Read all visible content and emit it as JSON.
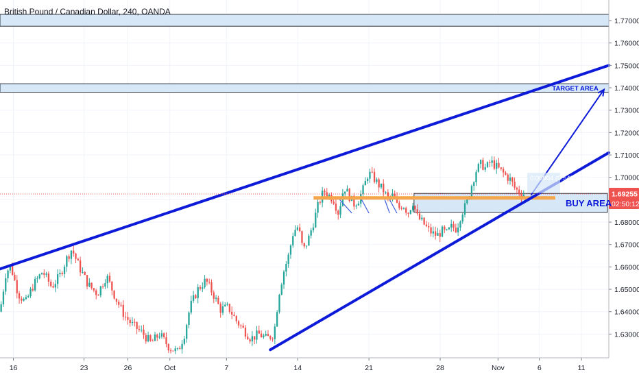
{
  "header": {
    "symbol_title": "British Pound / Canadian Dollar, 240, OANDA"
  },
  "colors": {
    "up": "#26a69a",
    "down": "#ef5350",
    "trendline": "#0d1bd8",
    "zone_fill": "#d6e8f8",
    "zone_border": "#2a2e39",
    "orange_line": "#f6a54a",
    "price_red": "#ef5350",
    "measure_box": "#d6e8f8"
  },
  "annotations": {
    "target_label": "TARGET AREA",
    "buy_label": "BUY AREA",
    "measure_label": "0.00904 (0.54%) 90.4"
  },
  "price_axis": {
    "current_price": "1.69255",
    "countdown": "02:50:12"
  },
  "chart_data": {
    "type": "candlestick",
    "title": "British Pound / Canadian Dollar, 240, OANDA",
    "y_range": [
      1.6194,
      1.7792
    ],
    "y_ticks": [
      "1.77000",
      "1.76000",
      "1.75000",
      "1.74000",
      "1.73000",
      "1.72000",
      "1.71000",
      "1.70000",
      "1.69000",
      "1.68000",
      "1.67000",
      "1.66000",
      "1.65000",
      "1.64000",
      "1.63000"
    ],
    "x_ticks": [
      "16",
      "23",
      "26",
      "Oct",
      "7",
      "14",
      "21",
      "28",
      "Nov",
      "6",
      "11"
    ],
    "current_price": 1.69255,
    "zones": [
      {
        "name": "top-zone",
        "from": 1.7675,
        "to": 1.7728
      },
      {
        "name": "target-zone",
        "from": 1.738,
        "to": 1.7418
      },
      {
        "name": "buy-zone",
        "from": 1.6844,
        "to": 1.6928
      }
    ],
    "orange_level": 1.6908,
    "trendlines": [
      {
        "name": "upper-channel",
        "from": [
          0,
          1.6591
        ],
        "to": [
          1,
          1.75
        ]
      },
      {
        "name": "lower-channel",
        "from": [
          0.444,
          1.623
        ],
        "to": [
          1,
          1.711
        ]
      }
    ],
    "price_path": [
      [
        0.0,
        1.64
      ],
      [
        0.01,
        1.658
      ],
      [
        0.018,
        1.66
      ],
      [
        0.03,
        1.648
      ],
      [
        0.042,
        1.644
      ],
      [
        0.055,
        1.652
      ],
      [
        0.07,
        1.658
      ],
      [
        0.085,
        1.651
      ],
      [
        0.098,
        1.656
      ],
      [
        0.11,
        1.664
      ],
      [
        0.118,
        1.668
      ],
      [
        0.13,
        1.66
      ],
      [
        0.145,
        1.652
      ],
      [
        0.16,
        1.648
      ],
      [
        0.175,
        1.656
      ],
      [
        0.19,
        1.646
      ],
      [
        0.205,
        1.638
      ],
      [
        0.218,
        1.634
      ],
      [
        0.232,
        1.631
      ],
      [
        0.248,
        1.626
      ],
      [
        0.262,
        1.63
      ],
      [
        0.278,
        1.624
      ],
      [
        0.292,
        1.622
      ],
      [
        0.303,
        1.63
      ],
      [
        0.312,
        1.642
      ],
      [
        0.325,
        1.65
      ],
      [
        0.338,
        1.654
      ],
      [
        0.35,
        1.648
      ],
      [
        0.362,
        1.641
      ],
      [
        0.375,
        1.642
      ],
      [
        0.388,
        1.636
      ],
      [
        0.4,
        1.632
      ],
      [
        0.412,
        1.628
      ],
      [
        0.425,
        1.63
      ],
      [
        0.438,
        1.628
      ],
      [
        0.45,
        1.63
      ],
      [
        0.458,
        1.648
      ],
      [
        0.466,
        1.658
      ],
      [
        0.474,
        1.665
      ],
      [
        0.482,
        1.676
      ],
      [
        0.49,
        1.678
      ],
      [
        0.498,
        1.667
      ],
      [
        0.506,
        1.672
      ],
      [
        0.515,
        1.68
      ],
      [
        0.523,
        1.688
      ],
      [
        0.532,
        1.694
      ],
      [
        0.54,
        1.692
      ],
      [
        0.548,
        1.69
      ],
      [
        0.556,
        1.684
      ],
      [
        0.565,
        1.696
      ],
      [
        0.573,
        1.692
      ],
      [
        0.581,
        1.688
      ],
      [
        0.589,
        1.69
      ],
      [
        0.597,
        1.695
      ],
      [
        0.605,
        1.702
      ],
      [
        0.613,
        1.7
      ],
      [
        0.621,
        1.697
      ],
      [
        0.63,
        1.694
      ],
      [
        0.638,
        1.69
      ],
      [
        0.646,
        1.692
      ],
      [
        0.654,
        1.686
      ],
      [
        0.662,
        1.688
      ],
      [
        0.67,
        1.684
      ],
      [
        0.678,
        1.689
      ],
      [
        0.686,
        1.682
      ],
      [
        0.694,
        1.68
      ],
      [
        0.702,
        1.677
      ],
      [
        0.71,
        1.675
      ],
      [
        0.718,
        1.674
      ],
      [
        0.726,
        1.676
      ],
      [
        0.734,
        1.675
      ],
      [
        0.742,
        1.678
      ],
      [
        0.75,
        1.677
      ],
      [
        0.758,
        1.684
      ],
      [
        0.766,
        1.688
      ],
      [
        0.774,
        1.696
      ],
      [
        0.782,
        1.703
      ],
      [
        0.79,
        1.706
      ],
      [
        0.798,
        1.704
      ],
      [
        0.806,
        1.707
      ],
      [
        0.814,
        1.705
      ],
      [
        0.822,
        1.703
      ],
      [
        0.83,
        1.701
      ],
      [
        0.838,
        1.699
      ],
      [
        0.846,
        1.695
      ],
      [
        0.854,
        1.693
      ],
      [
        0.862,
        1.6925
      ]
    ]
  }
}
